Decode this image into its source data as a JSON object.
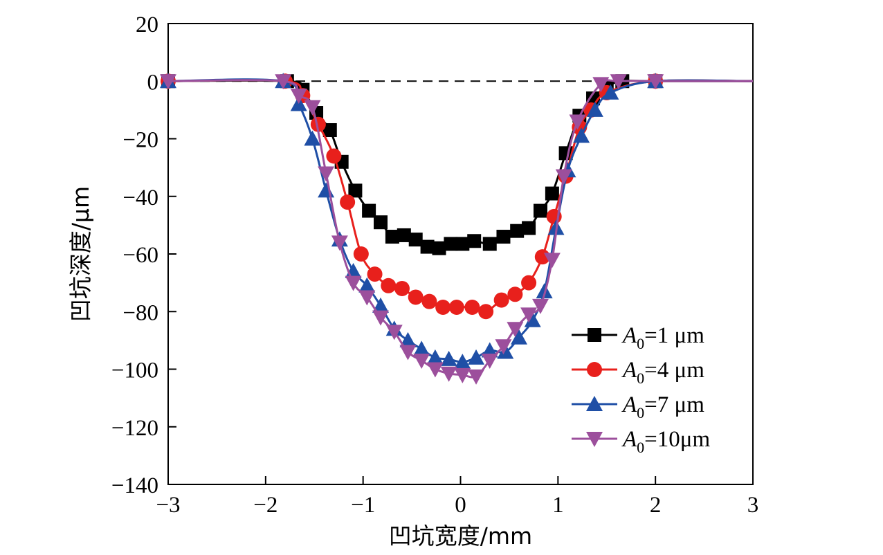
{
  "chart_data": {
    "type": "line",
    "xlabel": "凹坑宽度/mm",
    "ylabel": "凹坑深度/μm",
    "xlim": [
      -3,
      3
    ],
    "ylim": [
      -140,
      20
    ],
    "xticks": [
      -3,
      -2,
      -1,
      0,
      1,
      2,
      3
    ],
    "yticks": [
      20,
      0,
      -20,
      -40,
      -60,
      -80,
      -100,
      -120,
      -140
    ],
    "xtick_labels": [
      "−3",
      "−2",
      "−1",
      "0",
      "1",
      "2",
      "3"
    ],
    "ytick_labels": [
      "20",
      "0",
      "−20",
      "−40",
      "−60",
      "−80",
      "−100",
      "−120",
      "−140"
    ],
    "reference_line": {
      "y": 0,
      "style": "dashed"
    },
    "grid": false,
    "legend_position": "bottom-right",
    "series": [
      {
        "name": "A0=1 μm",
        "legend": {
          "prefix": "A",
          "sub": "0",
          "suffix": "=1 μm"
        },
        "color": "#000000",
        "marker": "square",
        "x": [
          -3.0,
          -1.78,
          -1.62,
          -1.48,
          -1.34,
          -1.22,
          -1.08,
          -0.94,
          -0.82,
          -0.7,
          -0.58,
          -0.46,
          -0.34,
          -0.22,
          -0.1,
          0.02,
          0.14,
          0.3,
          0.44,
          0.58,
          0.7,
          0.82,
          0.94,
          1.08,
          1.22,
          1.36,
          1.5,
          1.66,
          2.0,
          3.0
        ],
        "y": [
          0,
          0,
          -3,
          -11,
          -17,
          -28,
          -38,
          -45,
          -49,
          -54,
          -53.5,
          -55,
          -57.5,
          -58,
          -56.5,
          -56.5,
          -55.5,
          -56.5,
          -54,
          -52,
          -51,
          -45,
          -39,
          -25,
          -12,
          -6,
          -2,
          0,
          0,
          0
        ]
      },
      {
        "name": "A0=4 μm",
        "legend": {
          "prefix": "A",
          "sub": "0",
          "suffix": "=4 μm"
        },
        "color": "#e8201c",
        "marker": "circle",
        "x": [
          -3.0,
          -1.8,
          -1.62,
          -1.46,
          -1.3,
          -1.16,
          -1.02,
          -0.88,
          -0.74,
          -0.6,
          -0.46,
          -0.32,
          -0.18,
          -0.04,
          0.12,
          0.26,
          0.42,
          0.56,
          0.7,
          0.84,
          0.96,
          1.08,
          1.22,
          1.34,
          1.5,
          2.0,
          3.0
        ],
        "y": [
          0,
          0,
          -5,
          -15,
          -26,
          -42,
          -60,
          -67,
          -71,
          -72,
          -75,
          -76.5,
          -78.5,
          -78.5,
          -78.5,
          -80,
          -76,
          -74,
          -70,
          -61,
          -47,
          -33,
          -16,
          -10,
          -4,
          0,
          0
        ]
      },
      {
        "name": "A0=7 μm",
        "legend": {
          "prefix": "A",
          "sub": "0",
          "suffix": "=7 μm"
        },
        "color": "#1f4fa6",
        "marker": "triangle-up",
        "x": [
          -3.0,
          -1.82,
          -1.66,
          -1.52,
          -1.38,
          -1.24,
          -1.1,
          -0.96,
          -0.82,
          -0.68,
          -0.54,
          -0.4,
          -0.26,
          -0.12,
          0.02,
          0.16,
          0.3,
          0.46,
          0.6,
          0.74,
          0.86,
          0.98,
          1.1,
          1.24,
          1.38,
          1.54,
          2.0,
          3.0
        ],
        "y": [
          0,
          0,
          -8,
          -20,
          -38,
          -55,
          -66,
          -71,
          -78,
          -86,
          -90,
          -93,
          -96,
          -96.5,
          -97.5,
          -96,
          -93.5,
          -94,
          -89,
          -83,
          -73,
          -51,
          -31,
          -19,
          -10,
          -4,
          0,
          0
        ]
      },
      {
        "name": "A0=10μm",
        "legend": {
          "prefix": "A",
          "sub": "0",
          "suffix": "=10μm"
        },
        "color": "#9c4f9c",
        "marker": "triangle-down",
        "x": [
          -3.0,
          -1.82,
          -1.66,
          -1.52,
          -1.38,
          -1.24,
          -1.1,
          -0.96,
          -0.82,
          -0.68,
          -0.54,
          -0.4,
          -0.26,
          -0.12,
          0.02,
          0.16,
          0.3,
          0.44,
          0.56,
          0.7,
          0.82,
          0.94,
          1.06,
          1.2,
          1.44,
          1.62,
          2.0,
          3.0
        ],
        "y": [
          0,
          0,
          -5,
          -9,
          -32,
          -56,
          -70,
          -75,
          -82,
          -87,
          -94,
          -97,
          -100,
          -101.5,
          -102,
          -102.5,
          -97,
          -92,
          -86,
          -81,
          -78,
          -62,
          -33,
          -14,
          -1,
          0,
          0,
          0
        ]
      }
    ]
  }
}
